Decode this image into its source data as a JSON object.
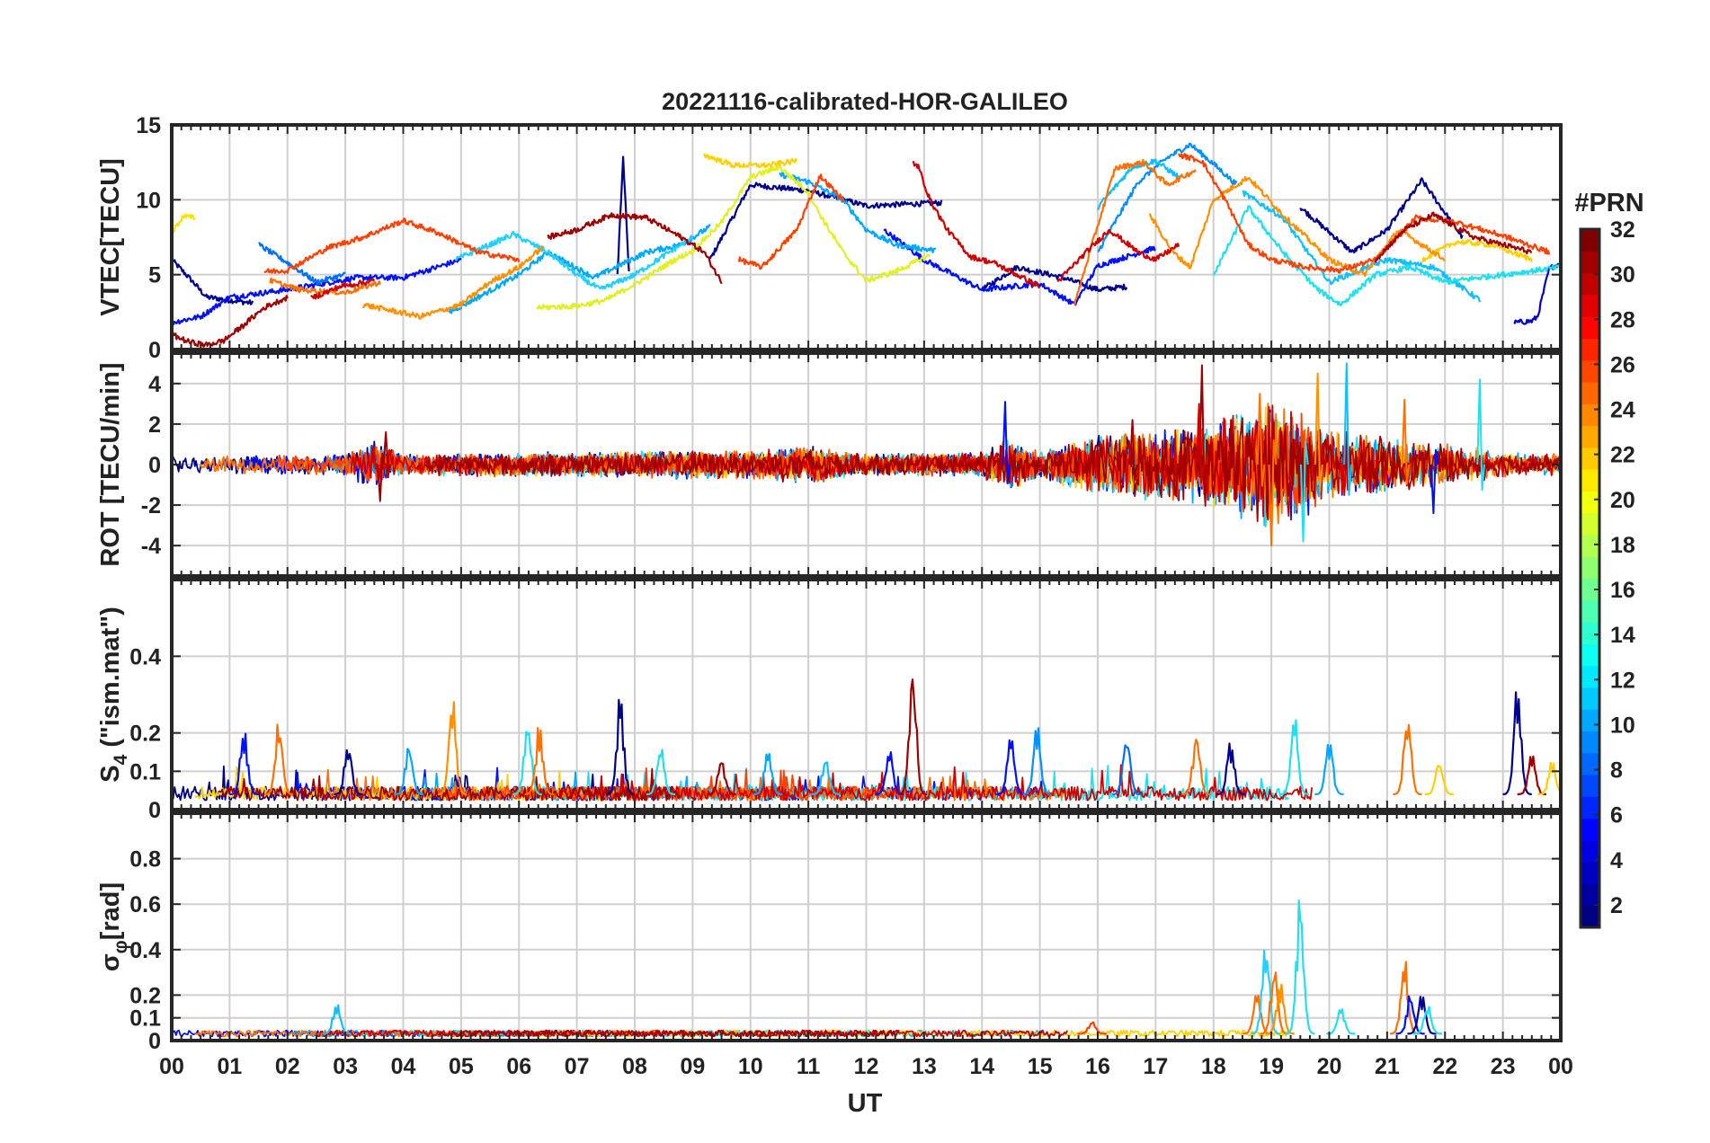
{
  "figure": {
    "title": "20221116-calibrated-HOR-GALILEO",
    "xlabel": "UT",
    "colorbar_label": "#PRN"
  },
  "chart_data": [
    {
      "type": "line",
      "panel": "vtec",
      "ylabel": "VTEC[TECU]",
      "ylim": [
        0,
        15
      ],
      "yticks": [
        0,
        5,
        10,
        15
      ],
      "xlim": [
        0,
        24
      ],
      "grid": true,
      "series": [
        {
          "prn": 1,
          "color": "#00008f",
          "x": [
            0,
            0.3,
            0.6,
            1.0,
            1.4
          ],
          "y": [
            6.0,
            4.8,
            3.5,
            3.3,
            3.1
          ]
        },
        {
          "prn": 1,
          "color": "#00008f",
          "x": [
            7.7,
            7.8,
            7.9
          ],
          "y": [
            5.0,
            12.8,
            5.2
          ]
        },
        {
          "prn": 1,
          "color": "#00008f",
          "x": [
            9.3,
            10.0,
            11.0,
            12.0,
            13.3
          ],
          "y": [
            6.0,
            11.0,
            10.6,
            9.6,
            9.8
          ]
        },
        {
          "prn": 1,
          "color": "#00008f",
          "x": [
            14.0,
            14.6,
            15.4,
            16.0,
            16.5
          ],
          "y": [
            4.0,
            5.5,
            4.8,
            4.0,
            4.2
          ]
        },
        {
          "prn": 1,
          "color": "#00008f",
          "x": [
            19.5,
            20.4,
            21.0,
            21.6,
            22.3
          ],
          "y": [
            9.5,
            6.5,
            8.0,
            11.3,
            7.5
          ]
        },
        {
          "prn": 2,
          "color": "#0000cc",
          "x": [
            23.2,
            23.5,
            23.6,
            23.8,
            24.0
          ],
          "y": [
            1.8,
            1.9,
            2.2,
            5.4,
            5.8
          ]
        },
        {
          "prn": 3,
          "color": "#0010ff",
          "x": [
            0,
            0.5,
            1.0,
            2.0,
            3.2,
            4.0,
            5.0
          ],
          "y": [
            1.8,
            2.2,
            3.5,
            4.0,
            4.8,
            4.8,
            6.0
          ]
        },
        {
          "prn": 3,
          "color": "#0010ff",
          "x": [
            12.3,
            13.0,
            14.0,
            15.0,
            15.6,
            16.0,
            17.0
          ],
          "y": [
            8.0,
            6.0,
            4.0,
            4.4,
            3.0,
            5.6,
            6.8
          ]
        },
        {
          "prn": 7,
          "color": "#0070ff",
          "x": [
            1.5,
            2.0,
            2.5,
            3.0
          ],
          "y": [
            7.0,
            5.8,
            4.5,
            5.0
          ]
        },
        {
          "prn": 8,
          "color": "#0090ff",
          "x": [
            16.0,
            16.7,
            17.2,
            17.6,
            18.0,
            18.4
          ],
          "y": [
            6.5,
            11.2,
            12.8,
            13.7,
            12.4,
            11.0
          ]
        },
        {
          "prn": 9,
          "color": "#00a8ff",
          "x": [
            4.8,
            5.3,
            6.0,
            6.5,
            7.3,
            8.2,
            8.8,
            9.3
          ],
          "y": [
            2.5,
            3.5,
            5.0,
            6.5,
            4.8,
            6.5,
            7.0,
            8.2
          ]
        },
        {
          "prn": 9,
          "color": "#00a8ff",
          "x": [
            10.5,
            11.0,
            11.6,
            12.0,
            12.5,
            13.2
          ],
          "y": [
            11.7,
            11.2,
            10.0,
            8.0,
            7.0,
            6.6
          ]
        },
        {
          "prn": 10,
          "color": "#10bfff",
          "x": [
            16.0,
            16.6,
            17.0,
            17.4
          ],
          "y": [
            9.5,
            12.2,
            12.6,
            11.5
          ]
        },
        {
          "prn": 10,
          "color": "#10bfff",
          "x": [
            18.5,
            19.2,
            20.0,
            21.0,
            21.8,
            22.6
          ],
          "y": [
            10.5,
            8.8,
            4.5,
            6.0,
            5.5,
            3.3
          ]
        },
        {
          "prn": 11,
          "color": "#20d0ff",
          "x": [
            4.9,
            5.5,
            5.9,
            6.5,
            7.0,
            7.4,
            8.0,
            9.0
          ],
          "y": [
            6.0,
            7.0,
            7.7,
            6.5,
            5.0,
            4.0,
            5.0,
            7.5
          ]
        },
        {
          "prn": 12,
          "color": "#20e0f0",
          "x": [
            18.0,
            18.6,
            19.2,
            19.8,
            20.2,
            20.8,
            21.4,
            22.0,
            23.0,
            24.0
          ],
          "y": [
            5.0,
            9.5,
            6.5,
            4.0,
            3.0,
            5.0,
            5.5,
            4.5,
            5.0,
            5.5
          ]
        },
        {
          "prn": 19,
          "color": "#e0f020",
          "x": [
            6.3,
            7.0,
            7.5,
            8.2,
            8.6,
            9.0,
            9.5,
            10.0,
            10.5,
            11.0,
            11.2,
            11.6,
            12.0,
            12.5,
            13.1
          ],
          "y": [
            2.8,
            2.9,
            3.3,
            4.8,
            5.8,
            6.6,
            8.5,
            11.5,
            12.2,
            10.5,
            9.0,
            6.5,
            4.6,
            5.2,
            6.3
          ]
        },
        {
          "prn": 20,
          "color": "#ffe000",
          "x": [
            0,
            0.2,
            0.4
          ],
          "y": [
            7.8,
            8.9,
            8.8
          ]
        },
        {
          "prn": 21,
          "color": "#ffd000",
          "x": [
            9.2,
            9.7,
            10.3,
            10.8
          ],
          "y": [
            13.0,
            12.3,
            12.3,
            12.6
          ]
        },
        {
          "prn": 21,
          "color": "#ffd000",
          "x": [
            21.6,
            22.2,
            22.8,
            23.5
          ],
          "y": [
            6.0,
            7.2,
            7.0,
            6.0
          ]
        },
        {
          "prn": 23,
          "color": "#ff9000",
          "x": [
            3.3,
            3.8,
            4.3,
            5.0,
            5.5,
            6.0,
            6.4
          ],
          "y": [
            3.0,
            2.6,
            2.2,
            3.0,
            4.5,
            5.5,
            6.8
          ]
        },
        {
          "prn": 23,
          "color": "#ff9000",
          "x": [
            16.9,
            17.3,
            17.6,
            18.0,
            18.6,
            19.2,
            20.0,
            20.6,
            21.2,
            22.0
          ],
          "y": [
            9.0,
            6.5,
            5.5,
            10.0,
            11.5,
            9.0,
            6.0,
            5.0,
            8.0,
            6.0
          ]
        },
        {
          "prn": 24,
          "color": "#ff7000",
          "x": [
            1.7,
            2.2,
            3.0,
            3.6
          ],
          "y": [
            4.6,
            4.0,
            3.8,
            4.5
          ]
        },
        {
          "prn": 24,
          "color": "#ff7000",
          "x": [
            15.6,
            15.9,
            16.3,
            16.8,
            17.2,
            17.7
          ],
          "y": [
            3.0,
            7.0,
            12.1,
            12.5,
            11.0,
            12.0
          ]
        },
        {
          "prn": 26,
          "color": "#ff4000",
          "x": [
            1.6,
            2.0,
            2.7,
            3.3,
            4.0,
            4.6,
            5.3,
            6.0
          ],
          "y": [
            5.2,
            5.3,
            6.8,
            7.5,
            8.6,
            7.8,
            6.5,
            6.0
          ]
        },
        {
          "prn": 26,
          "color": "#ff4000",
          "x": [
            9.8,
            10.2,
            10.8,
            11.2,
            11.6
          ],
          "y": [
            6.0,
            5.5,
            8.0,
            11.6,
            10.0
          ]
        },
        {
          "prn": 26,
          "color": "#ff4000",
          "x": [
            17.4,
            17.8,
            18.2,
            18.6,
            19.0,
            19.6,
            20.2,
            20.8,
            21.5,
            22.2,
            23.0,
            23.8
          ],
          "y": [
            13.0,
            12.6,
            10.0,
            7.0,
            6.0,
            5.5,
            5.3,
            6.0,
            8.8,
            8.5,
            7.6,
            6.5
          ]
        },
        {
          "prn": 29,
          "color": "#d00000",
          "x": [
            2.4,
            2.9,
            3.5
          ],
          "y": [
            3.4,
            4.2,
            4.6
          ]
        },
        {
          "prn": 29,
          "color": "#d00000",
          "x": [
            12.8,
            12.9,
            13.1,
            13.4,
            13.8,
            14.2,
            14.6,
            15.0
          ],
          "y": [
            12.5,
            12.2,
            10.0,
            8.0,
            6.2,
            5.8,
            5.0,
            4.2
          ]
        },
        {
          "prn": 29,
          "color": "#d00000",
          "x": [
            15.3,
            15.8,
            16.2,
            16.7,
            17.0,
            17.4
          ],
          "y": [
            4.5,
            6.5,
            8.0,
            6.5,
            6.0,
            7.0
          ]
        },
        {
          "prn": 31,
          "color": "#a00000",
          "x": [
            0,
            0.3,
            0.6,
            0.9,
            1.2,
            1.6,
            2.0
          ],
          "y": [
            1.0,
            0.5,
            0.3,
            0.6,
            1.5,
            2.8,
            3.5
          ]
        },
        {
          "prn": 31,
          "color": "#a00000",
          "x": [
            6.5,
            7.0,
            7.6,
            8.2,
            8.8,
            9.2,
            9.5
          ],
          "y": [
            7.5,
            8.0,
            9.0,
            8.8,
            7.5,
            6.5,
            4.5
          ]
        },
        {
          "prn": 31,
          "color": "#a00000",
          "x": [
            20.8,
            21.3,
            21.8,
            22.5,
            23.0,
            23.5
          ],
          "y": [
            6.0,
            8.0,
            9.0,
            7.5,
            7.0,
            6.5
          ]
        }
      ]
    },
    {
      "type": "line",
      "panel": "rot",
      "ylabel": "ROT [TECU/min]",
      "ylim": [
        -5.5,
        5.5
      ],
      "yticks": [
        -4,
        -2,
        0,
        2,
        4
      ],
      "xlim": [
        0,
        24
      ],
      "grid": true,
      "noise_envelope": {
        "x": [
          0,
          3,
          3.5,
          4,
          7,
          10,
          11,
          12,
          14,
          14.5,
          15,
          15.6,
          16.5,
          17.5,
          18.5,
          19,
          19.5,
          20,
          21,
          22,
          23,
          24
        ],
        "amplitude": [
          0.4,
          0.5,
          1.2,
          0.5,
          0.6,
          0.7,
          0.9,
          0.5,
          0.6,
          1.2,
          0.6,
          1.2,
          1.6,
          1.8,
          2.6,
          3.0,
          2.6,
          1.6,
          1.4,
          1.0,
          0.6,
          0.5
        ]
      },
      "series_colors": [
        "#00008f",
        "#0010ff",
        "#00a8ff",
        "#20e0f0",
        "#ffd000",
        "#ff7000",
        "#ff4000",
        "#d00000",
        "#a00000"
      ],
      "spikes": [
        {
          "x": 3.7,
          "y": 1.6,
          "color": "#a00000"
        },
        {
          "x": 3.6,
          "y": -1.8,
          "color": "#a00000"
        },
        {
          "x": 14.4,
          "y": 3.1,
          "color": "#0010ff"
        },
        {
          "x": 16.6,
          "y": 2.2,
          "color": "#a00000"
        },
        {
          "x": 17.8,
          "y": 4.9,
          "color": "#a00000"
        },
        {
          "x": 17.75,
          "y": 3.0,
          "color": "#d00000"
        },
        {
          "x": 18.8,
          "y": 3.5,
          "color": "#ff7000"
        },
        {
          "x": 19.0,
          "y": -4.0,
          "color": "#ff7000"
        },
        {
          "x": 19.55,
          "y": -3.8,
          "color": "#20e0f0"
        },
        {
          "x": 19.8,
          "y": 4.5,
          "color": "#ff9000"
        },
        {
          "x": 20.3,
          "y": 5.0,
          "color": "#10bfff"
        },
        {
          "x": 21.3,
          "y": 3.2,
          "color": "#ff7000"
        },
        {
          "x": 21.8,
          "y": -2.4,
          "color": "#0010ff"
        },
        {
          "x": 22.6,
          "y": 4.2,
          "color": "#20e0f0"
        }
      ]
    },
    {
      "type": "line",
      "panel": "s4",
      "ylabel": "S4 (\"ism.mat\")",
      "ylabel_main": "S",
      "ylabel_sub": "4",
      "ylabel_rest": " (\"ism.mat\")",
      "ylim": [
        0,
        0.6
      ],
      "yticks": [
        0,
        0.1,
        0.2,
        0.4
      ],
      "xlim": [
        0,
        24
      ],
      "grid": true,
      "baseline": 0.04,
      "series_colors": [
        "#00008f",
        "#0010ff",
        "#00a8ff",
        "#20e0f0",
        "#ffd000",
        "#ff7000",
        "#ff4000",
        "#d00000",
        "#a00000"
      ],
      "peaks": [
        {
          "x": 1.25,
          "y": 0.23,
          "color": "#0010ff"
        },
        {
          "x": 1.85,
          "y": 0.24,
          "color": "#ff7000"
        },
        {
          "x": 3.05,
          "y": 0.19,
          "color": "#00008f"
        },
        {
          "x": 4.1,
          "y": 0.18,
          "color": "#00a8ff"
        },
        {
          "x": 4.85,
          "y": 0.31,
          "color": "#ff9000"
        },
        {
          "x": 6.15,
          "y": 0.26,
          "color": "#20e0f0"
        },
        {
          "x": 6.35,
          "y": 0.23,
          "color": "#ff7000"
        },
        {
          "x": 7.75,
          "y": 0.31,
          "color": "#00008f"
        },
        {
          "x": 8.45,
          "y": 0.18,
          "color": "#20e0f0"
        },
        {
          "x": 9.5,
          "y": 0.14,
          "color": "#a00000"
        },
        {
          "x": 10.3,
          "y": 0.18,
          "color": "#00a8ff"
        },
        {
          "x": 11.3,
          "y": 0.15,
          "color": "#10bfff"
        },
        {
          "x": 12.4,
          "y": 0.17,
          "color": "#0010ff"
        },
        {
          "x": 12.8,
          "y": 0.4,
          "color": "#a00000"
        },
        {
          "x": 14.5,
          "y": 0.21,
          "color": "#0010ff"
        },
        {
          "x": 14.95,
          "y": 0.23,
          "color": "#0090ff"
        },
        {
          "x": 16.5,
          "y": 0.21,
          "color": "#0070ff"
        },
        {
          "x": 17.7,
          "y": 0.21,
          "color": "#ff7000"
        },
        {
          "x": 18.3,
          "y": 0.19,
          "color": "#00008f"
        },
        {
          "x": 19.4,
          "y": 0.26,
          "color": "#20e0f0"
        },
        {
          "x": 20.0,
          "y": 0.2,
          "color": "#00a8ff"
        },
        {
          "x": 21.35,
          "y": 0.26,
          "color": "#ff7000"
        },
        {
          "x": 21.9,
          "y": 0.14,
          "color": "#ffd000"
        },
        {
          "x": 23.25,
          "y": 0.34,
          "color": "#00008f"
        },
        {
          "x": 23.5,
          "y": 0.16,
          "color": "#a00000"
        },
        {
          "x": 23.85,
          "y": 0.13,
          "color": "#ffd000"
        }
      ]
    },
    {
      "type": "line",
      "panel": "sigma_phi",
      "ylabel": "σφ[rad]",
      "ylabel_main": "σ",
      "ylabel_sub": "φ",
      "ylabel_rest": "[rad]",
      "ylim": [
        0,
        1.0
      ],
      "yticks": [
        0,
        0.1,
        0.2,
        0.4,
        0.6,
        0.8
      ],
      "xlim": [
        0,
        24
      ],
      "grid": true,
      "baseline": 0.03,
      "series_colors": [
        "#0010ff",
        "#00a8ff",
        "#20e0f0",
        "#ffd000",
        "#ff7000",
        "#d00000",
        "#a00000"
      ],
      "peaks": [
        {
          "x": 2.85,
          "y": 0.19,
          "color": "#10bfff"
        },
        {
          "x": 15.9,
          "y": 0.09,
          "color": "#ff4000"
        },
        {
          "x": 18.75,
          "y": 0.22,
          "color": "#ff7000"
        },
        {
          "x": 18.9,
          "y": 0.48,
          "color": "#20d0ff"
        },
        {
          "x": 19.05,
          "y": 0.33,
          "color": "#ff7000"
        },
        {
          "x": 19.15,
          "y": 0.28,
          "color": "#ff9000"
        },
        {
          "x": 19.5,
          "y": 0.69,
          "color": "#20e0f0"
        },
        {
          "x": 20.2,
          "y": 0.15,
          "color": "#20e0f0"
        },
        {
          "x": 21.3,
          "y": 0.38,
          "color": "#ff7000"
        },
        {
          "x": 21.4,
          "y": 0.21,
          "color": "#0010ff"
        },
        {
          "x": 21.6,
          "y": 0.22,
          "color": "#00008f"
        },
        {
          "x": 21.7,
          "y": 0.16,
          "color": "#20e0f0"
        }
      ]
    }
  ],
  "xticks": [
    "00",
    "01",
    "02",
    "03",
    "04",
    "05",
    "06",
    "07",
    "08",
    "09",
    "10",
    "11",
    "12",
    "13",
    "14",
    "15",
    "16",
    "17",
    "18",
    "19",
    "20",
    "21",
    "22",
    "23",
    "00"
  ],
  "colorbar": {
    "range": [
      1,
      32
    ],
    "ticks": [
      2,
      4,
      6,
      8,
      10,
      12,
      14,
      16,
      18,
      20,
      22,
      24,
      26,
      28,
      30,
      32
    ],
    "colormap": "jet",
    "levels": 32
  }
}
